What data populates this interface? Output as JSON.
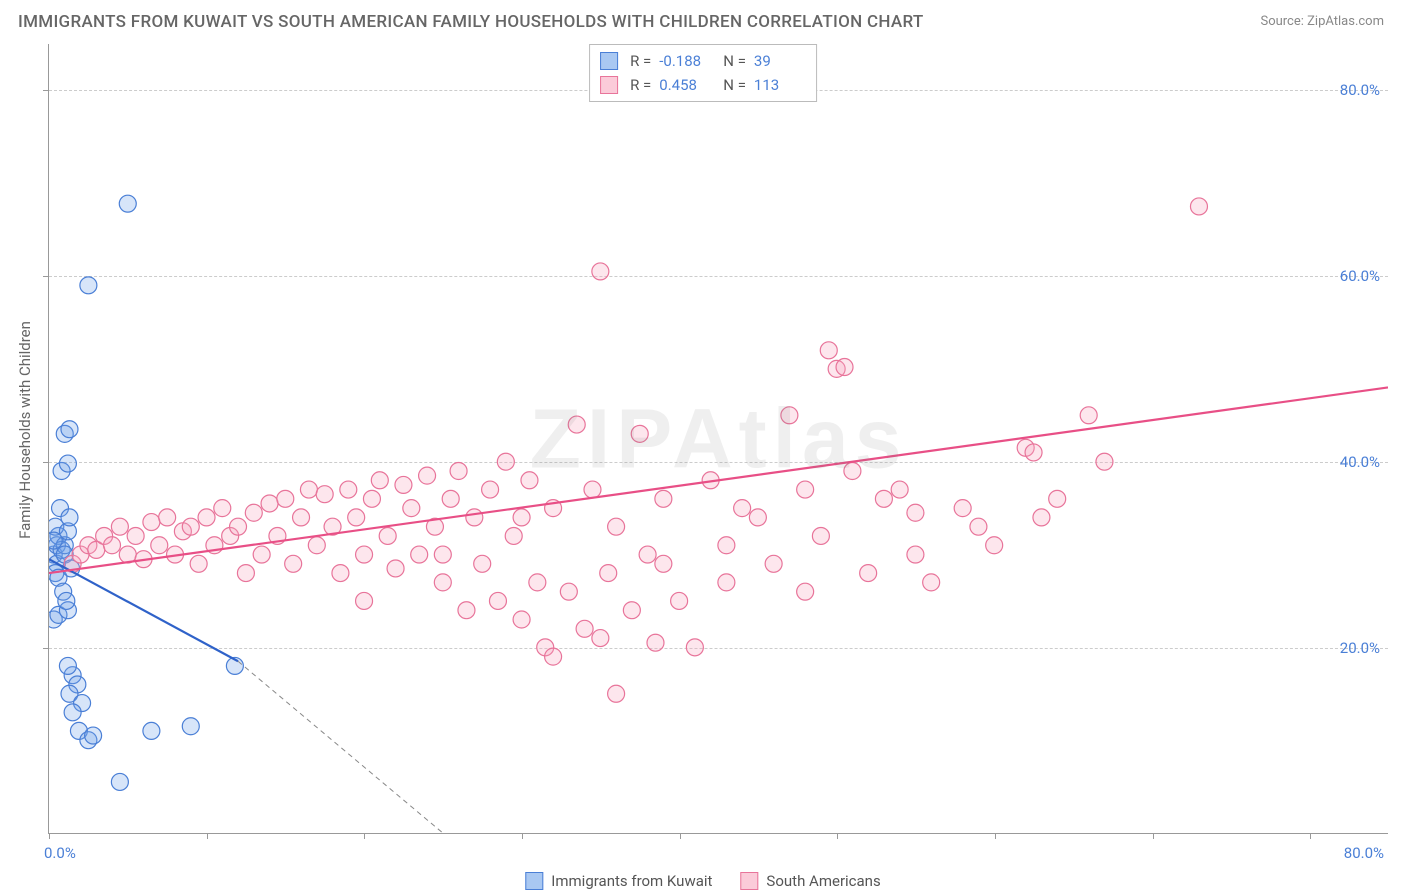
{
  "title": "IMMIGRANTS FROM KUWAIT VS SOUTH AMERICAN FAMILY HOUSEHOLDS WITH CHILDREN CORRELATION CHART",
  "source": "Source: ZipAtlas.com",
  "watermark": "ZIPAtlas",
  "yaxis_label": "Family Households with Children",
  "chart": {
    "type": "scatter-correlation",
    "xlim": [
      0,
      85
    ],
    "ylim": [
      0,
      85
    ],
    "ytick_labels": [
      "20.0%",
      "40.0%",
      "60.0%",
      "80.0%"
    ],
    "ytick_values": [
      20,
      40,
      60,
      80
    ],
    "x_min_label": "0.0%",
    "x_max_label": "80.0%",
    "xtick_values": [
      0,
      10,
      20,
      30,
      40,
      50,
      60,
      70,
      80
    ],
    "background_color": "#ffffff",
    "grid_color": "#cccccc",
    "marker_radius": 8.5,
    "marker_stroke_width": 1.2,
    "marker_fill_opacity": 0.28,
    "line_width": 2.2,
    "series": [
      {
        "name": "Immigrants from Kuwait",
        "color": "#6ea3e8",
        "stroke": "#4a7fd6",
        "line_color": "#2f62c9",
        "R": "-0.188",
        "N": "39",
        "trend": {
          "x1": 0,
          "y1": 29.5,
          "x2": 12,
          "y2": 18.5,
          "x2_dash": 25,
          "y2_dash": 0
        },
        "points": [
          [
            0.3,
            30
          ],
          [
            0.5,
            31
          ],
          [
            0.6,
            32
          ],
          [
            0.4,
            33
          ],
          [
            0.7,
            35
          ],
          [
            0.5,
            29
          ],
          [
            0.8,
            30.5
          ],
          [
            1.0,
            31
          ],
          [
            1.2,
            32.5
          ],
          [
            1.0,
            30
          ],
          [
            1.3,
            34
          ],
          [
            0.3,
            23
          ],
          [
            0.6,
            23.5
          ],
          [
            1.2,
            24
          ],
          [
            1.5,
            17
          ],
          [
            1.2,
            18
          ],
          [
            1.8,
            16
          ],
          [
            1.3,
            15
          ],
          [
            2.1,
            14
          ],
          [
            1.5,
            13
          ],
          [
            1.9,
            11
          ],
          [
            2.5,
            10
          ],
          [
            2.8,
            10.5
          ],
          [
            4.5,
            5.5
          ],
          [
            6.5,
            11
          ],
          [
            9.0,
            11.5
          ],
          [
            11.8,
            18
          ],
          [
            0.8,
            39
          ],
          [
            1.2,
            39.8
          ],
          [
            1.0,
            43
          ],
          [
            1.3,
            43.5
          ],
          [
            2.5,
            59
          ],
          [
            5.0,
            67.8
          ],
          [
            0.4,
            28
          ],
          [
            0.6,
            27.5
          ],
          [
            0.9,
            26
          ],
          [
            1.1,
            25
          ],
          [
            1.4,
            28.5
          ],
          [
            0.3,
            31.5
          ]
        ]
      },
      {
        "name": "South Americans",
        "color": "#f7a6bd",
        "stroke": "#e8749a",
        "line_color": "#e84f86",
        "R": "0.458",
        "N": "113",
        "trend": {
          "x1": 0,
          "y1": 28,
          "x2": 85,
          "y2": 48
        },
        "points": [
          [
            1.5,
            29
          ],
          [
            2,
            30
          ],
          [
            2.5,
            31
          ],
          [
            3,
            30.5
          ],
          [
            3.5,
            32
          ],
          [
            4,
            31
          ],
          [
            4.5,
            33
          ],
          [
            5,
            30
          ],
          [
            5.5,
            32
          ],
          [
            6,
            29.5
          ],
          [
            6.5,
            33.5
          ],
          [
            7,
            31
          ],
          [
            7.5,
            34
          ],
          [
            8,
            30
          ],
          [
            8.5,
            32.5
          ],
          [
            9,
            33
          ],
          [
            9.5,
            29
          ],
          [
            10,
            34
          ],
          [
            10.5,
            31
          ],
          [
            11,
            35
          ],
          [
            11.5,
            32
          ],
          [
            12,
            33
          ],
          [
            12.5,
            28
          ],
          [
            13,
            34.5
          ],
          [
            13.5,
            30
          ],
          [
            14,
            35.5
          ],
          [
            14.5,
            32
          ],
          [
            15,
            36
          ],
          [
            15.5,
            29
          ],
          [
            16,
            34
          ],
          [
            16.5,
            37
          ],
          [
            17,
            31
          ],
          [
            17.5,
            36.5
          ],
          [
            18,
            33
          ],
          [
            18.5,
            28
          ],
          [
            19,
            37
          ],
          [
            19.5,
            34
          ],
          [
            20,
            30
          ],
          [
            20.5,
            36
          ],
          [
            21,
            38
          ],
          [
            21.5,
            32
          ],
          [
            22,
            28.5
          ],
          [
            22.5,
            37.5
          ],
          [
            23,
            35
          ],
          [
            23.5,
            30
          ],
          [
            24,
            38.5
          ],
          [
            24.5,
            33
          ],
          [
            25,
            27
          ],
          [
            25.5,
            36
          ],
          [
            26,
            39
          ],
          [
            26.5,
            24
          ],
          [
            27,
            34
          ],
          [
            27.5,
            29
          ],
          [
            28,
            37
          ],
          [
            28.5,
            25
          ],
          [
            29,
            40
          ],
          [
            29.5,
            32
          ],
          [
            30,
            23
          ],
          [
            30.5,
            38
          ],
          [
            31,
            27
          ],
          [
            31.5,
            20
          ],
          [
            32,
            35
          ],
          [
            32,
            19
          ],
          [
            33,
            26
          ],
          [
            33.5,
            44
          ],
          [
            34,
            22
          ],
          [
            34.5,
            37
          ],
          [
            35,
            60.5
          ],
          [
            35.5,
            28
          ],
          [
            36,
            33
          ],
          [
            36,
            15
          ],
          [
            37,
            24
          ],
          [
            37.5,
            43
          ],
          [
            38,
            30
          ],
          [
            38.5,
            20.5
          ],
          [
            39,
            36
          ],
          [
            40,
            25
          ],
          [
            41,
            20
          ],
          [
            42,
            38
          ],
          [
            43,
            31
          ],
          [
            44,
            35
          ],
          [
            45,
            34
          ],
          [
            46,
            29
          ],
          [
            47,
            45
          ],
          [
            48,
            37
          ],
          [
            49,
            32
          ],
          [
            49.5,
            52
          ],
          [
            50,
            50
          ],
          [
            50.5,
            50.2
          ],
          [
            51,
            39
          ],
          [
            52,
            28
          ],
          [
            53,
            36
          ],
          [
            54,
            37
          ],
          [
            55,
            34.5
          ],
          [
            56,
            27
          ],
          [
            58,
            35
          ],
          [
            59,
            33
          ],
          [
            60,
            31
          ],
          [
            62,
            41.5
          ],
          [
            62.5,
            41
          ],
          [
            63,
            34
          ],
          [
            64,
            36
          ],
          [
            66,
            45
          ],
          [
            67,
            40
          ],
          [
            73,
            67.5
          ],
          [
            55,
            30
          ],
          [
            48,
            26
          ],
          [
            43,
            27
          ],
          [
            39,
            29
          ],
          [
            35,
            21
          ],
          [
            30,
            34
          ],
          [
            25,
            30
          ],
          [
            20,
            25
          ]
        ]
      }
    ]
  },
  "legend_bottom": [
    {
      "label": "Immigrants from Kuwait",
      "fill": "#a9c8f2",
      "stroke": "#4a7fd6"
    },
    {
      "label": "South Americans",
      "fill": "#fbcbd9",
      "stroke": "#e8749a"
    }
  ],
  "legend_top_swatches": [
    {
      "fill": "#a9c8f2",
      "stroke": "#4a7fd6"
    },
    {
      "fill": "#fbcbd9",
      "stroke": "#e8749a"
    }
  ]
}
